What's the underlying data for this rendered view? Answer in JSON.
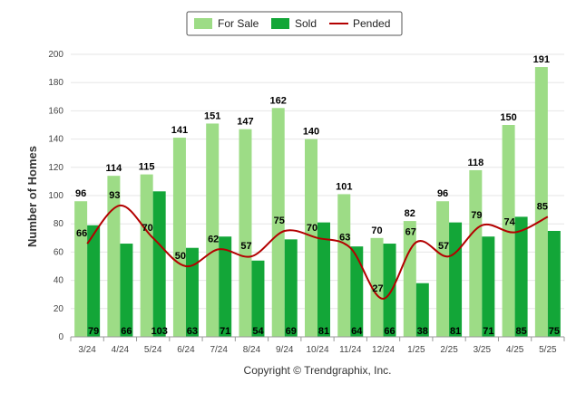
{
  "chart_data": {
    "type": "bar",
    "categories": [
      "3/24",
      "4/24",
      "5/24",
      "6/24",
      "7/24",
      "8/24",
      "9/24",
      "10/24",
      "11/24",
      "12/24",
      "1/25",
      "2/25",
      "3/25",
      "4/25",
      "5/25"
    ],
    "series": [
      {
        "name": "For Sale",
        "type": "bar",
        "color": "#9ddc86",
        "values": [
          96,
          114,
          115,
          141,
          151,
          147,
          162,
          140,
          101,
          70,
          82,
          96,
          118,
          150,
          191
        ]
      },
      {
        "name": "Sold",
        "type": "bar",
        "color": "#13a638",
        "values": [
          79,
          66,
          103,
          63,
          71,
          54,
          69,
          81,
          64,
          66,
          38,
          81,
          71,
          85,
          75
        ]
      },
      {
        "name": "Pended",
        "type": "line",
        "color": "#b30000",
        "values": [
          66,
          93,
          70,
          50,
          62,
          57,
          75,
          70,
          63,
          27,
          67,
          57,
          79,
          74,
          85
        ]
      }
    ],
    "ylabel": "Number of Homes",
    "ylim": [
      0,
      200
    ],
    "yticks": [
      0,
      20,
      40,
      60,
      80,
      100,
      120,
      140,
      160,
      180,
      200
    ],
    "grid": true,
    "legend": "top-center"
  },
  "footer": {
    "copyright": "Copyright © Trendgraphix, Inc."
  }
}
